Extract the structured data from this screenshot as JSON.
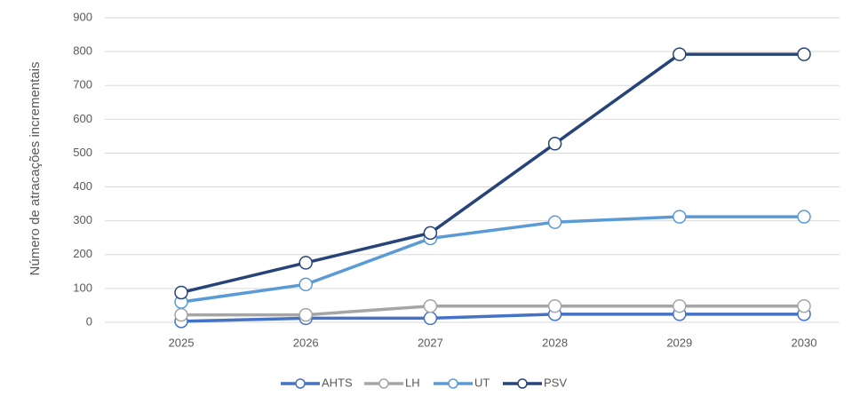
{
  "chart_data": {
    "type": "line",
    "y_label": "Número de atracações incrementais",
    "categories": [
      "2025",
      "2026",
      "2027",
      "2028",
      "2029",
      "2030"
    ],
    "series": [
      {
        "name": "AHTS",
        "color": "#4472c4",
        "values": [
          3,
          12,
          12,
          24,
          24,
          24
        ]
      },
      {
        "name": "LH",
        "color": "#a5a5a5",
        "values": [
          22,
          22,
          48,
          48,
          48,
          48
        ]
      },
      {
        "name": "UT",
        "color": "#5b9bd5",
        "values": [
          60,
          112,
          248,
          296,
          312,
          312
        ]
      },
      {
        "name": "PSV",
        "color": "#264478",
        "values": [
          88,
          176,
          264,
          528,
          792,
          792
        ]
      }
    ],
    "ylim": [
      0,
      900
    ],
    "yticks": [
      0,
      100,
      200,
      300,
      400,
      500,
      600,
      700,
      800,
      900
    ],
    "grid": true,
    "legend": "bottom"
  }
}
